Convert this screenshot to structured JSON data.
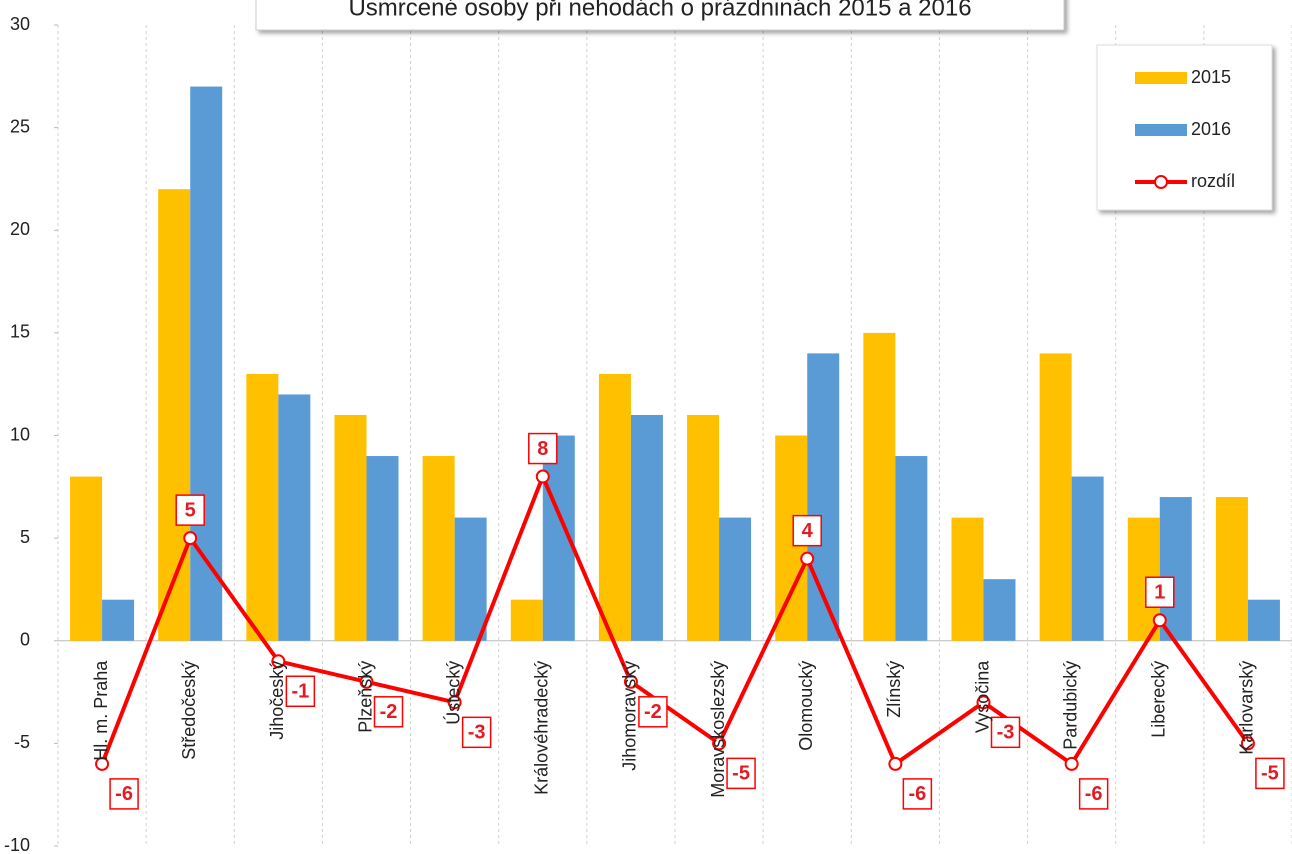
{
  "chart_data": {
    "type": "bar-line",
    "title": "Usmrcené osoby při nehodách o prázdninách 2015 a 2016",
    "categories": [
      "Hl. m. Praha",
      "Středočeský",
      "Jihočeský",
      "Plzeňský",
      "Ústecký",
      "Královéhradecký",
      "Jihomoravský",
      "Moravskoslezský",
      "Olomoucký",
      "Zlínský",
      "Vysočina",
      "Pardubický",
      "Liberecký",
      "Karlovarský"
    ],
    "series": [
      {
        "name": "2015",
        "type": "bar",
        "color": "#ffc000",
        "values": [
          8,
          22,
          13,
          11,
          9,
          2,
          13,
          11,
          10,
          15,
          6,
          14,
          6,
          7
        ]
      },
      {
        "name": "2016",
        "type": "bar",
        "color": "#5b9bd5",
        "values": [
          2,
          27,
          12,
          9,
          6,
          10,
          11,
          6,
          14,
          9,
          3,
          8,
          7,
          2
        ]
      },
      {
        "name": "rozdíl",
        "type": "line",
        "color": "#ff0000",
        "values": [
          -6,
          5,
          -1,
          -2,
          -3,
          8,
          -2,
          -5,
          4,
          -6,
          -3,
          -6,
          1,
          -5
        ]
      }
    ],
    "ylim": [
      -10,
      30
    ],
    "yticks": [
      -10,
      -5,
      0,
      5,
      10,
      15,
      20,
      25,
      30
    ],
    "legend": "top-right"
  }
}
